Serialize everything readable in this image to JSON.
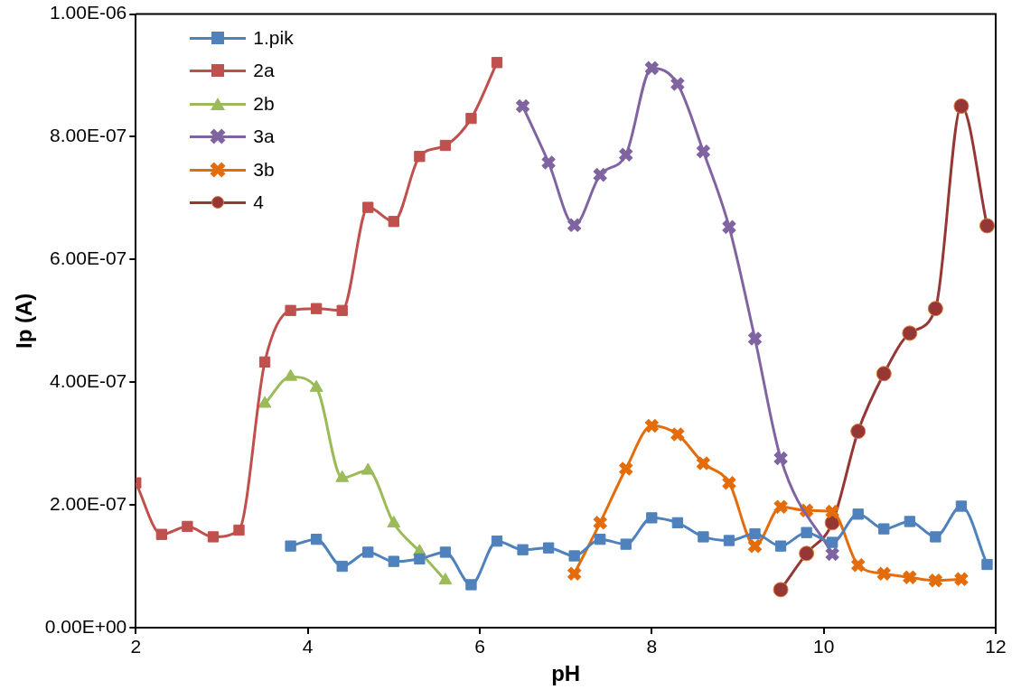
{
  "chart_data": {
    "type": "line",
    "xlabel": "pH",
    "ylabel": "Ip (A)",
    "xlim": [
      2,
      12
    ],
    "xticks": [
      2,
      4,
      6,
      8,
      10,
      12
    ],
    "ylim": [
      0,
      1e-06
    ],
    "yticks": [
      {
        "value": 0,
        "label": "0.00E+00"
      },
      {
        "value": 2e-07,
        "label": "2.00E-07"
      },
      {
        "value": 4e-07,
        "label": "4.00E-07"
      },
      {
        "value": 6e-07,
        "label": "6.00E-07"
      },
      {
        "value": 8e-07,
        "label": "8.00E-07"
      },
      {
        "value": 1e-06,
        "label": "1.00E-06"
      }
    ],
    "grid": false,
    "legend": "top left",
    "line_style": "solid",
    "series": [
      {
        "name": "1.pik",
        "color": "#4f81bd",
        "marker": "square",
        "x": [
          3.8,
          4.1,
          4.4,
          4.7,
          5.0,
          5.3,
          5.6,
          5.9,
          6.2,
          6.5,
          6.8,
          7.1,
          7.4,
          7.7,
          8.0,
          8.3,
          8.6,
          8.9,
          9.2,
          9.5,
          9.8,
          10.1,
          10.4,
          10.7,
          11.0,
          11.3,
          11.6,
          11.9
        ],
        "values": [
          1.33e-07,
          1.44e-07,
          1e-07,
          1.23e-07,
          1.08e-07,
          1.12e-07,
          1.23e-07,
          7e-08,
          1.41e-07,
          1.27e-07,
          1.3e-07,
          1.17e-07,
          1.44e-07,
          1.36e-07,
          1.79e-07,
          1.71e-07,
          1.48e-07,
          1.42e-07,
          1.53e-07,
          1.33e-07,
          1.55e-07,
          1.39e-07,
          1.85e-07,
          1.61e-07,
          1.73e-07,
          1.48e-07,
          1.98e-07,
          1.03e-07
        ]
      },
      {
        "name": "2a",
        "color": "#c0504d",
        "marker": "square",
        "x": [
          2.0,
          2.3,
          2.6,
          2.9,
          3.2,
          3.5,
          3.8,
          4.1,
          4.4,
          4.7,
          5.0,
          5.3,
          5.6,
          5.9,
          6.2
        ],
        "values": [
          2.36e-07,
          1.52e-07,
          1.65e-07,
          1.48e-07,
          1.59e-07,
          4.33e-07,
          5.17e-07,
          5.2e-07,
          5.17e-07,
          6.85e-07,
          6.62e-07,
          7.68e-07,
          7.86e-07,
          8.3e-07,
          9.21e-07
        ]
      },
      {
        "name": "2b",
        "color": "#9bbb59",
        "marker": "triangle",
        "x": [
          3.5,
          3.8,
          4.1,
          4.4,
          4.7,
          5.0,
          5.3,
          5.6
        ],
        "values": [
          3.65e-07,
          4.09e-07,
          3.91e-07,
          2.44e-07,
          2.56e-07,
          1.7e-07,
          1.24e-07,
          7.7e-08
        ]
      },
      {
        "name": "3a",
        "color": "#8064a2",
        "marker": "cross",
        "x": [
          6.5,
          6.8,
          7.1,
          7.4,
          7.7,
          8.0,
          8.3,
          8.6,
          8.9,
          9.2,
          9.5,
          10.1
        ],
        "values": [
          8.5e-07,
          7.58e-07,
          6.56e-07,
          7.38e-07,
          7.71e-07,
          9.12e-07,
          8.86e-07,
          7.76e-07,
          6.53e-07,
          4.71e-07,
          2.76e-07,
          1.2e-07
        ]
      },
      {
        "name": "3b",
        "color": "#e46c0a",
        "marker": "cross",
        "x": [
          7.1,
          7.4,
          7.7,
          8.0,
          8.3,
          8.6,
          8.9,
          9.2,
          9.5,
          9.8,
          10.1,
          10.4,
          10.7,
          11.0,
          11.3,
          11.6
        ],
        "values": [
          8.8e-08,
          1.71e-07,
          2.59e-07,
          3.29e-07,
          3.15e-07,
          2.68e-07,
          2.36e-07,
          1.33e-07,
          1.97e-07,
          1.91e-07,
          1.89e-07,
          1.02e-07,
          8.8e-08,
          8.2e-08,
          7.7e-08,
          7.9e-08
        ]
      },
      {
        "name": "4",
        "color": "#953735",
        "marker": "circle",
        "x": [
          9.5,
          9.8,
          10.1,
          10.4,
          10.7,
          11.0,
          11.3,
          11.6,
          11.9
        ],
        "values": [
          6.2e-08,
          1.21e-07,
          1.71e-07,
          3.2e-07,
          4.14e-07,
          4.8e-07,
          5.2e-07,
          8.5e-07,
          6.55e-07
        ]
      }
    ]
  }
}
